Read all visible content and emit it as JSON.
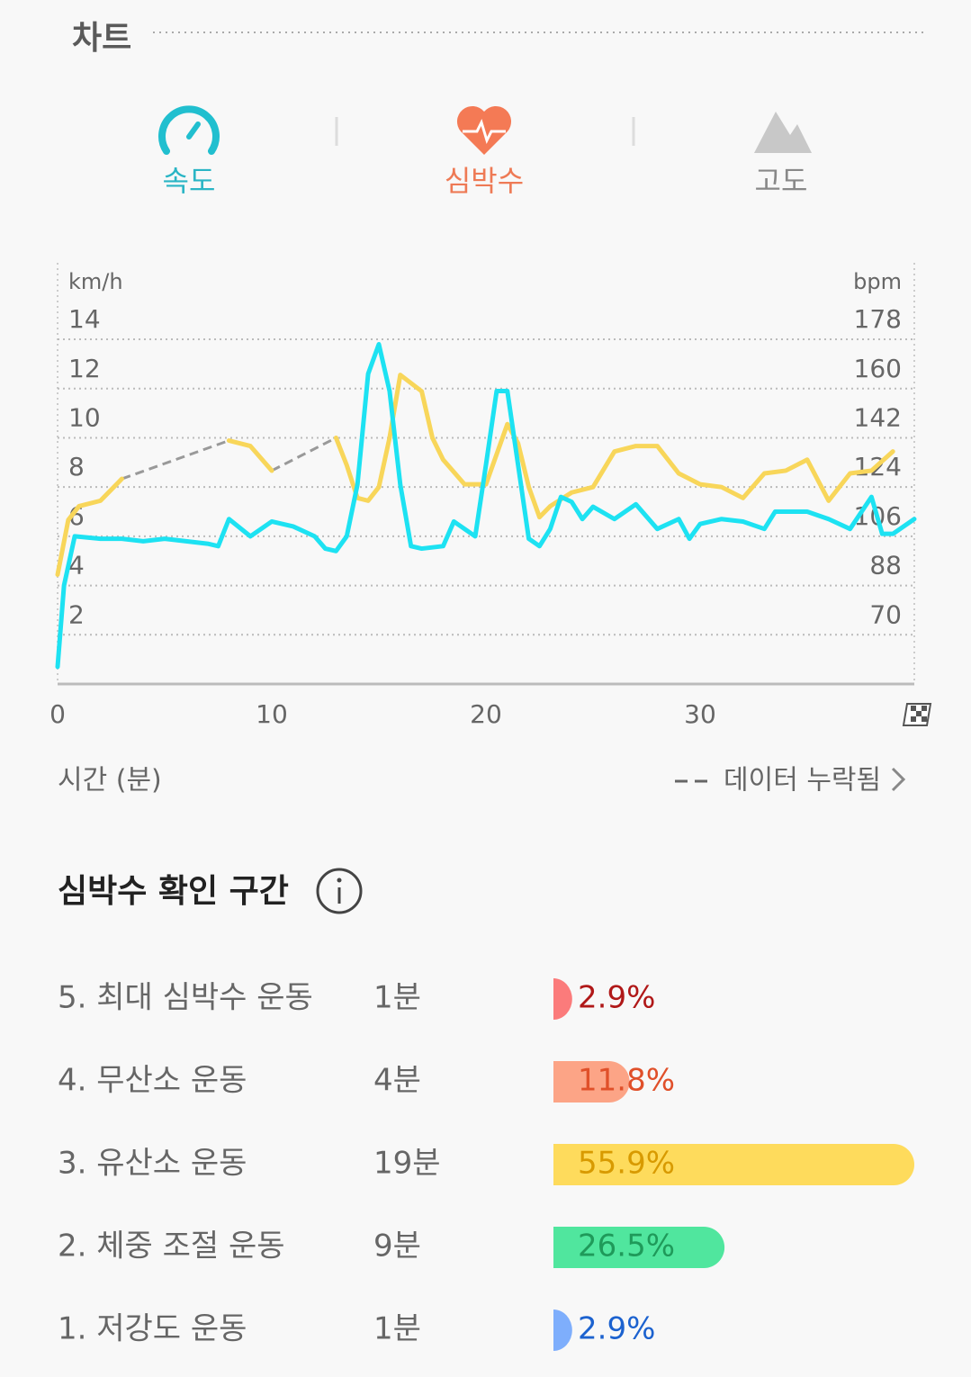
{
  "header": {
    "title": "차트"
  },
  "tabs": [
    {
      "label": "속도"
    },
    {
      "label": "심박수"
    },
    {
      "label": "고도"
    }
  ],
  "chart_data": {
    "type": "line",
    "ylabel": "km/h",
    "y2label": "bpm",
    "xlabel": "시간 (분)",
    "legend": "데이터 누락됨",
    "xlim": [
      0,
      40
    ],
    "xticks": [
      0,
      10,
      20,
      30
    ],
    "ylim": [
      0,
      17
    ],
    "yticks": [
      2,
      4,
      6,
      8,
      10,
      12,
      14
    ],
    "y2lim": [
      52,
      205
    ],
    "y2ticks": [
      70,
      88,
      106,
      124,
      142,
      160,
      178
    ],
    "grid": true,
    "series": [
      {
        "name": "속도",
        "color": "#1de2f2",
        "x": [
          0,
          0.3,
          0.8,
          2,
          3,
          4,
          5,
          6,
          7,
          7.5,
          8,
          9,
          10,
          11,
          12,
          12.5,
          13,
          13.5,
          14,
          14.5,
          15,
          15.5,
          16,
          16.5,
          17,
          18,
          18.5,
          19,
          19.5,
          20,
          20.5,
          21,
          21.5,
          22,
          22.5,
          23,
          23.5,
          24,
          24.5,
          25,
          26,
          27,
          28,
          29,
          29.5,
          30,
          31,
          32,
          33,
          33.5,
          35,
          36,
          37,
          38,
          38.5,
          39,
          40
        ],
        "values": [
          0.7,
          4,
          6,
          5.9,
          5.9,
          5.8,
          5.9,
          5.8,
          5.7,
          5.6,
          6.7,
          6,
          6.6,
          6.4,
          6,
          5.5,
          5.4,
          6,
          8.1,
          12.6,
          13.8,
          11.9,
          8.1,
          5.6,
          5.5,
          5.6,
          6.6,
          6.3,
          6,
          8.9,
          11.9,
          11.9,
          8.9,
          5.9,
          5.6,
          6.3,
          7.6,
          7.4,
          6.7,
          7.2,
          6.7,
          7.3,
          6.3,
          6.7,
          5.9,
          6.5,
          6.7,
          6.6,
          6.3,
          7,
          7,
          6.7,
          6.3,
          7.6,
          6.1,
          6.1,
          6.7
        ]
      },
      {
        "name": "심박수",
        "color": "#f8d65a",
        "axis": "y2",
        "x": [
          0,
          0.5,
          1,
          2,
          3,
          5,
          8,
          9,
          10,
          12,
          13,
          13.5,
          14,
          14.5,
          15,
          15.5,
          16,
          17,
          17.5,
          18,
          19,
          20,
          21,
          21.5,
          22,
          22.5,
          23,
          24,
          25,
          26,
          27,
          28,
          29,
          30,
          31,
          32,
          33,
          34,
          35,
          36,
          37,
          38,
          39
        ],
        "values": [
          92,
          112,
          117,
          119,
          127,
          null,
          141,
          139,
          130,
          null,
          142,
          132,
          120,
          119,
          124,
          142,
          165,
          159,
          142,
          134,
          125,
          125,
          147,
          140,
          124,
          113,
          117,
          122,
          124,
          137,
          139,
          139,
          129,
          125,
          124,
          120,
          129,
          130,
          134,
          119,
          129,
          130,
          137
        ]
      }
    ]
  },
  "zones": {
    "title": "심박수 확인 구간",
    "rows": [
      {
        "label": "5. 최대 심박수 운동",
        "duration": "1분",
        "percent": 2.9,
        "percent_label": "2.9%",
        "color": "#fb7b7b",
        "text_color": "#b01818"
      },
      {
        "label": "4. 무산소 운동",
        "duration": "4분",
        "percent": 11.8,
        "percent_label": "11.8%",
        "color": "#fca486",
        "text_color": "#e0502a"
      },
      {
        "label": "3. 유산소 운동",
        "duration": "19분",
        "percent": 55.9,
        "percent_label": "55.9%",
        "color": "#fedb5c",
        "text_color": "#d89a00"
      },
      {
        "label": "2. 체중 조절 운동",
        "duration": "9분",
        "percent": 26.5,
        "percent_label": "26.5%",
        "color": "#50e69e",
        "text_color": "#1f9a5a"
      },
      {
        "label": "1. 저강도 운동",
        "duration": "1분",
        "percent": 2.9,
        "percent_label": "2.9%",
        "color": "#7eaefc",
        "text_color": "#1c62cf"
      }
    ]
  }
}
